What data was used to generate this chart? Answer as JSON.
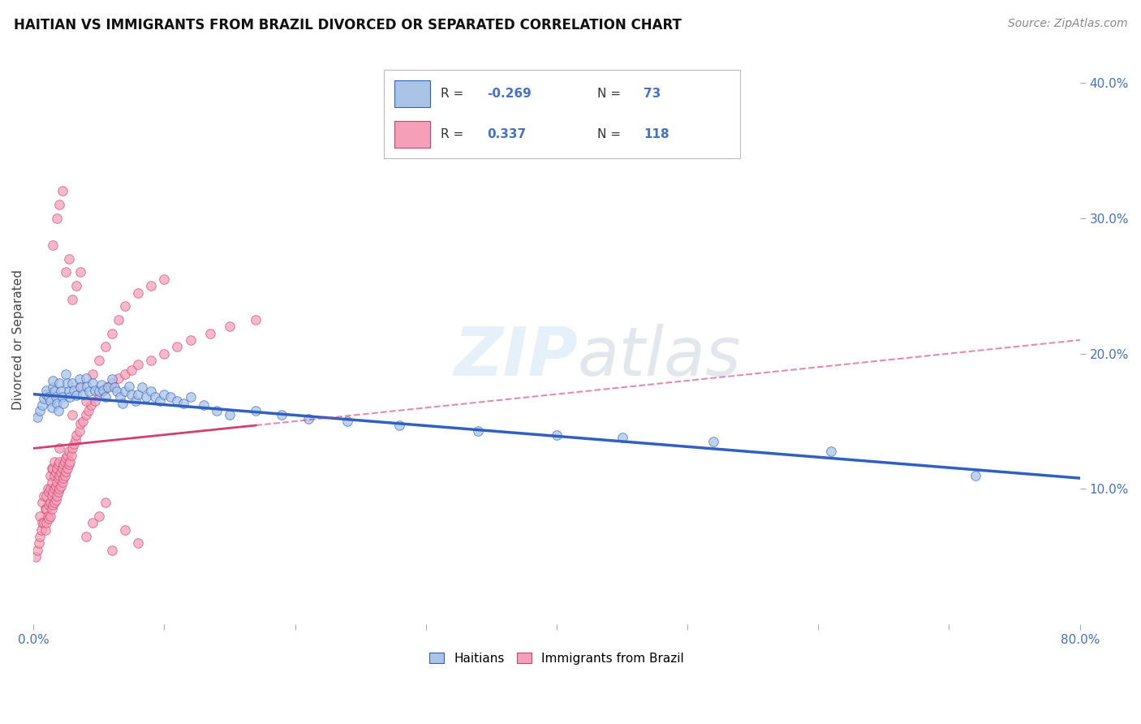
{
  "title": "HAITIAN VS IMMIGRANTS FROM BRAZIL DIVORCED OR SEPARATED CORRELATION CHART",
  "source": "Source: ZipAtlas.com",
  "ylabel": "Divorced or Separated",
  "x_min": 0.0,
  "x_max": 0.8,
  "y_min": 0.0,
  "y_max": 0.42,
  "haitian_R": -0.269,
  "haitian_N": 73,
  "brazil_R": 0.337,
  "brazil_N": 118,
  "haitian_color": "#aac4e8",
  "brazil_color": "#f5a0b8",
  "haitian_line_color": "#3060c0",
  "brazil_line_color": "#d04070",
  "background_color": "#ffffff",
  "grid_color": "#cccccc",
  "haitian_trend_start_y": 0.17,
  "haitian_trend_end_y": 0.108,
  "brazil_trend_start_y": 0.13,
  "brazil_trend_end_y": 0.21,
  "haitian_x": [
    0.003,
    0.005,
    0.007,
    0.008,
    0.01,
    0.01,
    0.012,
    0.013,
    0.014,
    0.015,
    0.015,
    0.016,
    0.017,
    0.018,
    0.019,
    0.02,
    0.021,
    0.022,
    0.023,
    0.025,
    0.026,
    0.027,
    0.028,
    0.03,
    0.031,
    0.033,
    0.035,
    0.036,
    0.038,
    0.04,
    0.041,
    0.043,
    0.045,
    0.047,
    0.05,
    0.052,
    0.053,
    0.055,
    0.057,
    0.06,
    0.062,
    0.064,
    0.066,
    0.068,
    0.07,
    0.073,
    0.075,
    0.078,
    0.08,
    0.083,
    0.086,
    0.09,
    0.093,
    0.097,
    0.1,
    0.105,
    0.11,
    0.115,
    0.12,
    0.13,
    0.14,
    0.15,
    0.17,
    0.19,
    0.21,
    0.24,
    0.28,
    0.34,
    0.4,
    0.45,
    0.52,
    0.61,
    0.72
  ],
  "haitian_y": [
    0.153,
    0.158,
    0.162,
    0.167,
    0.17,
    0.173,
    0.168,
    0.165,
    0.16,
    0.175,
    0.18,
    0.172,
    0.168,
    0.163,
    0.158,
    0.178,
    0.172,
    0.168,
    0.163,
    0.185,
    0.178,
    0.172,
    0.168,
    0.178,
    0.173,
    0.169,
    0.181,
    0.175,
    0.17,
    0.182,
    0.176,
    0.172,
    0.178,
    0.173,
    0.172,
    0.177,
    0.173,
    0.168,
    0.175,
    0.181,
    0.175,
    0.172,
    0.168,
    0.163,
    0.172,
    0.176,
    0.17,
    0.165,
    0.17,
    0.175,
    0.168,
    0.172,
    0.168,
    0.165,
    0.17,
    0.168,
    0.165,
    0.163,
    0.168,
    0.162,
    0.158,
    0.155,
    0.158,
    0.155,
    0.152,
    0.15,
    0.147,
    0.143,
    0.14,
    0.138,
    0.135,
    0.128,
    0.11
  ],
  "brazil_x": [
    0.002,
    0.003,
    0.004,
    0.005,
    0.005,
    0.006,
    0.007,
    0.007,
    0.008,
    0.008,
    0.009,
    0.009,
    0.01,
    0.01,
    0.01,
    0.011,
    0.011,
    0.012,
    0.012,
    0.012,
    0.013,
    0.013,
    0.013,
    0.013,
    0.014,
    0.014,
    0.014,
    0.014,
    0.015,
    0.015,
    0.015,
    0.016,
    0.016,
    0.016,
    0.016,
    0.017,
    0.017,
    0.017,
    0.018,
    0.018,
    0.018,
    0.019,
    0.019,
    0.019,
    0.02,
    0.02,
    0.02,
    0.02,
    0.021,
    0.021,
    0.022,
    0.022,
    0.023,
    0.023,
    0.024,
    0.024,
    0.025,
    0.025,
    0.026,
    0.026,
    0.027,
    0.027,
    0.028,
    0.029,
    0.03,
    0.031,
    0.032,
    0.033,
    0.035,
    0.036,
    0.038,
    0.04,
    0.042,
    0.044,
    0.047,
    0.05,
    0.053,
    0.056,
    0.06,
    0.065,
    0.07,
    0.075,
    0.08,
    0.09,
    0.1,
    0.11,
    0.12,
    0.135,
    0.15,
    0.17,
    0.03,
    0.035,
    0.04,
    0.045,
    0.05,
    0.055,
    0.06,
    0.065,
    0.07,
    0.08,
    0.09,
    0.1,
    0.015,
    0.018,
    0.02,
    0.022,
    0.025,
    0.027,
    0.03,
    0.033,
    0.036,
    0.04,
    0.045,
    0.05,
    0.055,
    0.06,
    0.07,
    0.08
  ],
  "brazil_y": [
    0.05,
    0.055,
    0.06,
    0.065,
    0.08,
    0.07,
    0.075,
    0.09,
    0.075,
    0.095,
    0.07,
    0.085,
    0.075,
    0.085,
    0.095,
    0.08,
    0.1,
    0.078,
    0.088,
    0.098,
    0.08,
    0.09,
    0.1,
    0.11,
    0.085,
    0.095,
    0.105,
    0.115,
    0.088,
    0.098,
    0.115,
    0.09,
    0.1,
    0.11,
    0.12,
    0.092,
    0.102,
    0.112,
    0.095,
    0.105,
    0.115,
    0.098,
    0.108,
    0.118,
    0.1,
    0.11,
    0.12,
    0.13,
    0.102,
    0.112,
    0.105,
    0.115,
    0.108,
    0.118,
    0.11,
    0.12,
    0.113,
    0.123,
    0.115,
    0.125,
    0.118,
    0.128,
    0.12,
    0.125,
    0.13,
    0.133,
    0.136,
    0.14,
    0.143,
    0.148,
    0.15,
    0.155,
    0.158,
    0.162,
    0.165,
    0.17,
    0.173,
    0.175,
    0.178,
    0.182,
    0.185,
    0.188,
    0.192,
    0.195,
    0.2,
    0.205,
    0.21,
    0.215,
    0.22,
    0.225,
    0.155,
    0.175,
    0.165,
    0.185,
    0.195,
    0.205,
    0.215,
    0.225,
    0.235,
    0.245,
    0.25,
    0.255,
    0.28,
    0.3,
    0.31,
    0.32,
    0.26,
    0.27,
    0.24,
    0.25,
    0.26,
    0.065,
    0.075,
    0.08,
    0.09,
    0.055,
    0.07,
    0.06
  ]
}
